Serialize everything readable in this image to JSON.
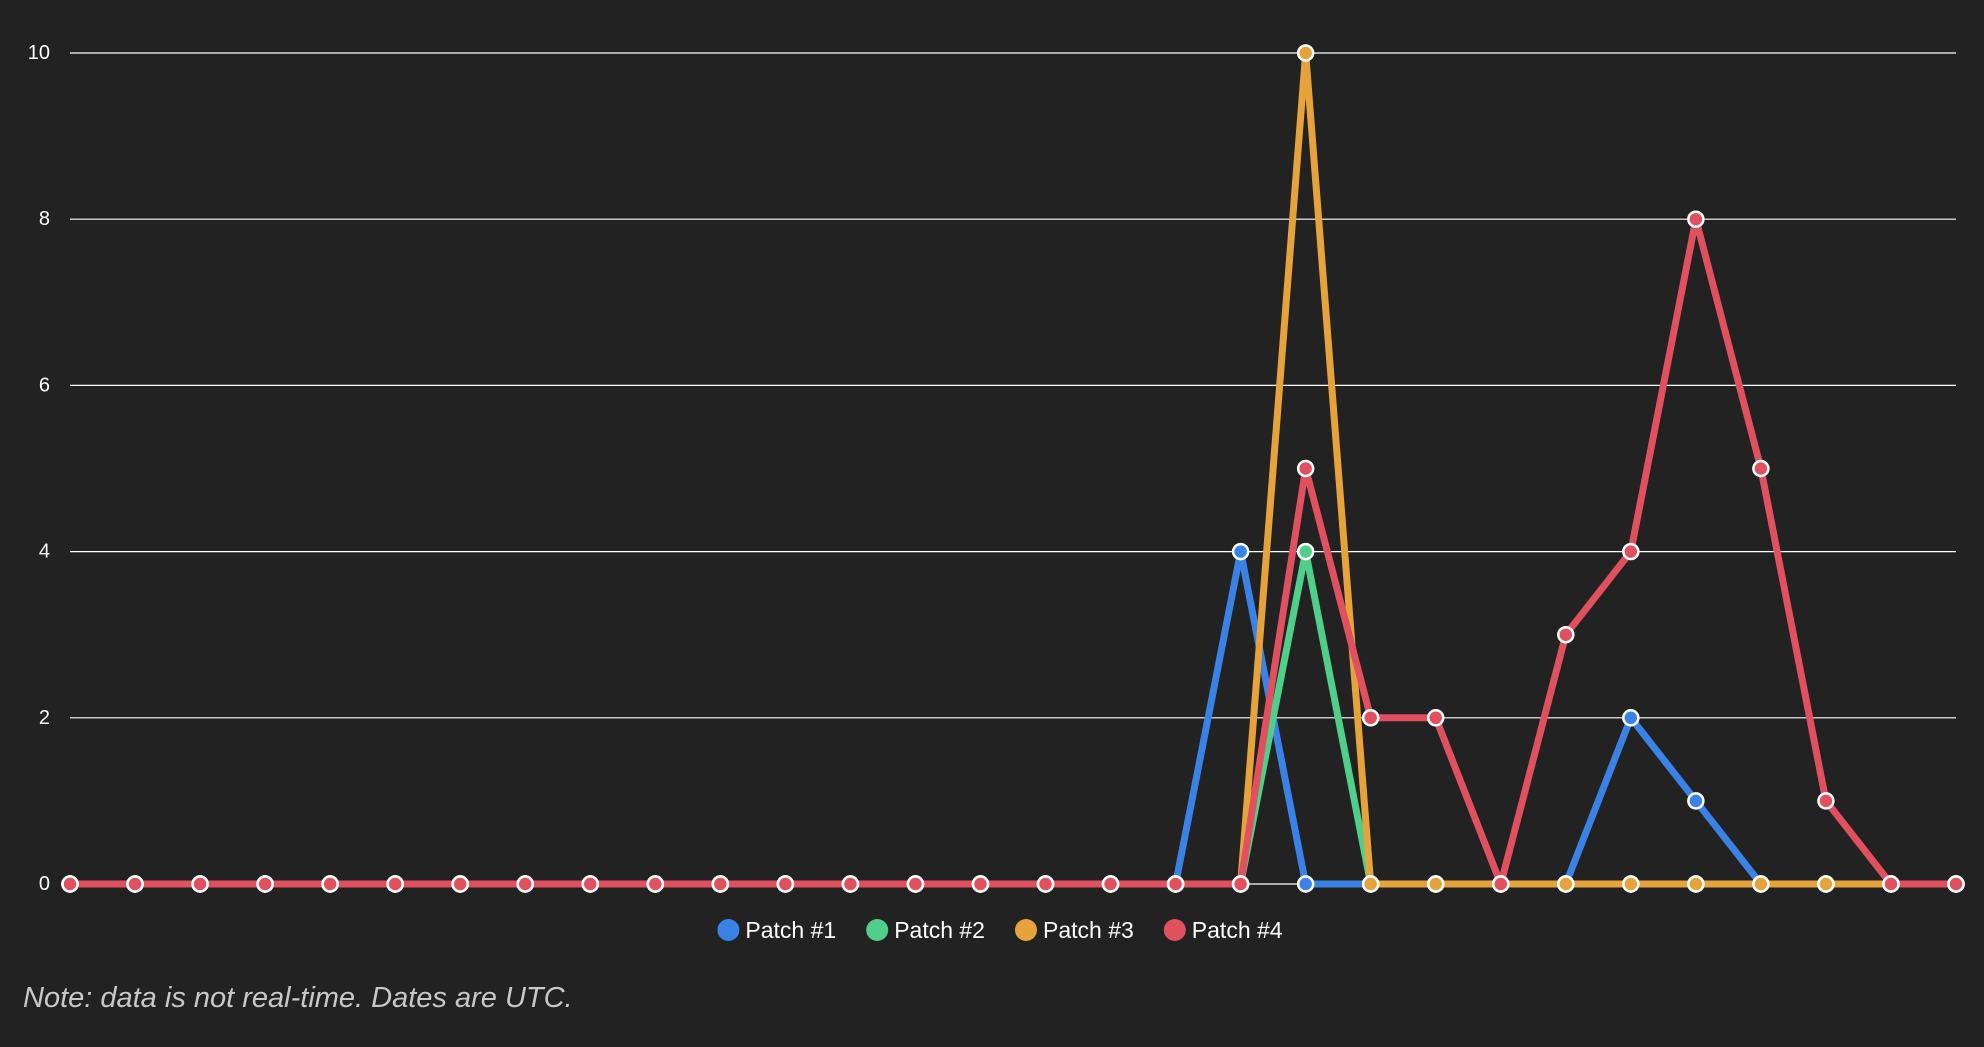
{
  "chart_data": {
    "type": "line",
    "title": "",
    "xlabel": "",
    "ylabel": "",
    "ylim": [
      0,
      10
    ],
    "y_ticks": [
      "0",
      "2",
      "4",
      "6",
      "8",
      "10"
    ],
    "x_count": 30,
    "grid": true,
    "legend_position": "bottom-center",
    "series": [
      {
        "name": "Patch #1",
        "color": "#3b82e6",
        "values": [
          0,
          0,
          0,
          0,
          0,
          0,
          0,
          0,
          0,
          0,
          0,
          0,
          0,
          0,
          0,
          0,
          0,
          0,
          4,
          0,
          0,
          0,
          0,
          0,
          2,
          1,
          0,
          0,
          0,
          0
        ]
      },
      {
        "name": "Patch #2",
        "color": "#4fcf8a",
        "values": [
          0,
          0,
          0,
          0,
          0,
          0,
          0,
          0,
          0,
          0,
          0,
          0,
          0,
          0,
          0,
          0,
          0,
          0,
          0,
          4,
          0,
          0,
          0,
          0,
          0,
          0,
          0,
          0,
          0,
          0
        ]
      },
      {
        "name": "Patch #3",
        "color": "#e6a33b",
        "values": [
          0,
          0,
          0,
          0,
          0,
          0,
          0,
          0,
          0,
          0,
          0,
          0,
          0,
          0,
          0,
          0,
          0,
          0,
          0,
          10,
          0,
          0,
          0,
          0,
          0,
          0,
          0,
          0,
          0,
          0
        ]
      },
      {
        "name": "Patch #4",
        "color": "#e0505e",
        "values": [
          0,
          0,
          0,
          0,
          0,
          0,
          0,
          0,
          0,
          0,
          0,
          0,
          0,
          0,
          0,
          0,
          0,
          0,
          0,
          5,
          2,
          2,
          0,
          3,
          4,
          8,
          5,
          1,
          0,
          0
        ]
      }
    ]
  },
  "note": "Note: data is not real-time. Dates are UTC."
}
